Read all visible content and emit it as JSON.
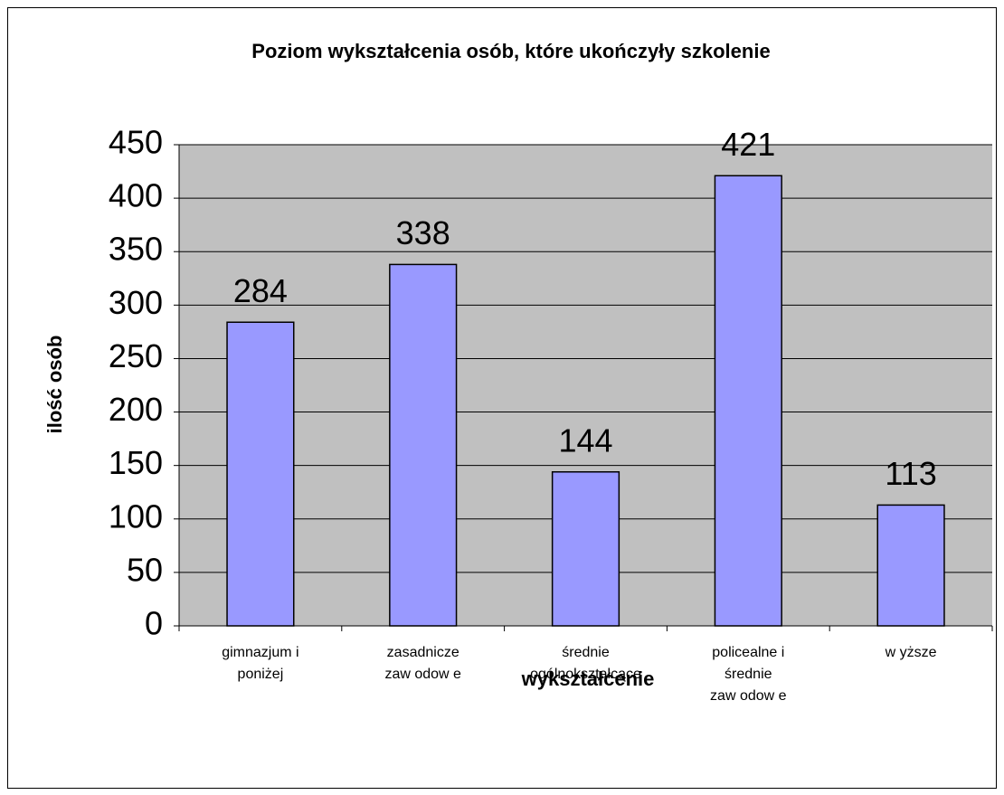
{
  "chart_data": {
    "type": "bar",
    "title": "Poziom wykształcenia osób, które ukończyły szkolenie",
    "x_label": "wykształcenie",
    "y_label": "ilość osób",
    "categories": [
      "gimnazjum i\nponiżej",
      "zasadnicze\nzaw odow e",
      "średnie\nogólnokształcące",
      "policealne i\nśrednie\nzaw odow e",
      "w yższe"
    ],
    "values": [
      284,
      338,
      144,
      421,
      113
    ],
    "color": "#9999ff",
    "ylim": [
      0,
      450
    ],
    "yticks": [
      0,
      50,
      100,
      150,
      200,
      250,
      300,
      350,
      400,
      450
    ],
    "grid": true
  }
}
